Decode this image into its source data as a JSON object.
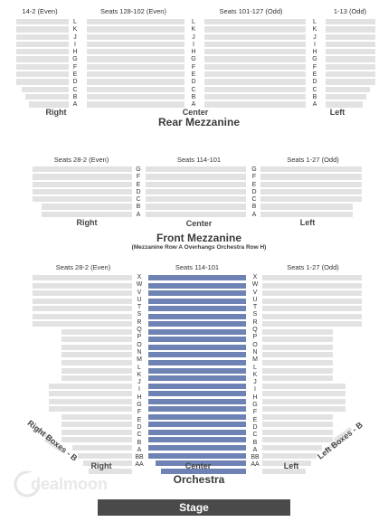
{
  "rear_mezzanine": {
    "title": "Rear Mezzanine",
    "labels": {
      "far_left": "14-2 (Even)",
      "left_center": "Seats 128-102 (Even)",
      "right_center": "Seats 101-127 (Odd)",
      "far_right": "1-13 (Odd)"
    },
    "row_letters": [
      "L",
      "K",
      "J",
      "I",
      "H",
      "G",
      "F",
      "E",
      "D",
      "C",
      "B",
      "A"
    ],
    "sides": {
      "right": "Right",
      "center": "Center",
      "left": "Left"
    }
  },
  "front_mezzanine": {
    "title": "Front Mezzanine",
    "subtitle": "(Mezzanine Row A Overhangs Orchestra Row H)",
    "labels": {
      "left": "Seats 28-2 (Even)",
      "center": "Seats 114-101",
      "right": "Seats 1-27 (Odd)"
    },
    "row_letters": [
      "G",
      "F",
      "E",
      "D",
      "C",
      "B",
      "A"
    ],
    "sides": {
      "right": "Right",
      "center": "Center",
      "left": "Left"
    }
  },
  "orchestra": {
    "title": "Orchestra",
    "labels": {
      "left": "Seats 28-2 (Even)",
      "center": "Seats 114-101",
      "right": "Seats 1-27 (Odd)"
    },
    "row_letters": [
      "X",
      "W",
      "V",
      "U",
      "T",
      "S",
      "R",
      "Q",
      "P",
      "O",
      "N",
      "M",
      "L",
      "K",
      "J",
      "I",
      "H",
      "G",
      "F",
      "E",
      "D",
      "C",
      "B",
      "A",
      "BB",
      "AA"
    ],
    "sides": {
      "right": "Right",
      "center": "Center",
      "left": "Left"
    },
    "boxes": {
      "right": "Right Boxes - B",
      "left": "Left Boxes - B"
    }
  },
  "stage": "Stage",
  "logo": {
    "text": "dealmoon"
  },
  "colors": {
    "highlight_section": "#6e82b3",
    "seat_row": "#e2e2e2",
    "stage": "#4a4a4a"
  }
}
